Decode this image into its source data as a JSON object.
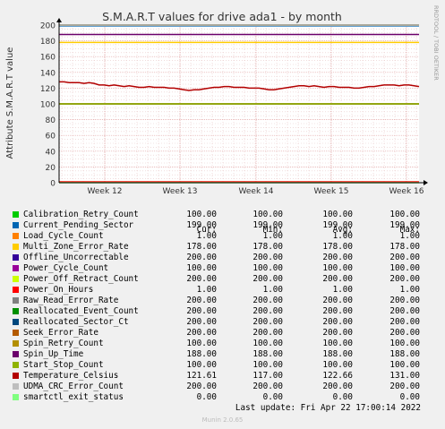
{
  "chart_data": {
    "type": "line",
    "title": "S.M.A.R.T values for drive ada1 - by month",
    "ylabel": "Attribute S.M.A.R.T value",
    "side_label": "RRDTOOL / TOBI OETIKER",
    "ylim": [
      0,
      200
    ],
    "yticks": [
      0,
      20,
      40,
      60,
      80,
      100,
      120,
      140,
      160,
      180,
      200
    ],
    "xticks": [
      "Week 12",
      "Week 13",
      "Week 14",
      "Week 15",
      "Week 16"
    ],
    "grid": true,
    "flat_series": [
      {
        "name": "Calibration_Retry_Count",
        "value": 100,
        "color": "#00cc00"
      },
      {
        "name": "Current_Pending_Sector",
        "value": 199,
        "color": "#0066b3"
      },
      {
        "name": "Load_Cycle_Count",
        "value": 1,
        "color": "#ff8000"
      },
      {
        "name": "Multi_Zone_Error_Rate",
        "value": 178,
        "color": "#ffcc00"
      },
      {
        "name": "Offline_Uncorrectable",
        "value": 200,
        "color": "#330099"
      },
      {
        "name": "Power_Cycle_Count",
        "value": 100,
        "color": "#990099"
      },
      {
        "name": "Power_Off_Retract_Count",
        "value": 200,
        "color": "#ccff00"
      },
      {
        "name": "Power_On_Hours",
        "value": 1,
        "color": "#ff0000"
      },
      {
        "name": "Raw_Read_Error_Rate",
        "value": 200,
        "color": "#808080"
      },
      {
        "name": "Reallocated_Event_Count",
        "value": 200,
        "color": "#008f00"
      },
      {
        "name": "Reallocated_Sector_Ct",
        "value": 200,
        "color": "#00487d"
      },
      {
        "name": "Seek_Error_Rate",
        "value": 200,
        "color": "#b35a00"
      },
      {
        "name": "Spin_Retry_Count",
        "value": 100,
        "color": "#b38f00"
      },
      {
        "name": "Spin_Up_Time",
        "value": 188,
        "color": "#6b006b"
      },
      {
        "name": "Start_Stop_Count",
        "value": 100,
        "color": "#8fb300"
      },
      {
        "name": "UDMA_CRC_Error_Count",
        "value": 200,
        "color": "#bebebe"
      },
      {
        "name": "smartctl_exit_status",
        "value": 0,
        "color": "#80ff80"
      }
    ],
    "temperature_series": {
      "name": "Temperature_Celsius",
      "color": "#b30000",
      "values": [
        128,
        128,
        127,
        127,
        127,
        126,
        127,
        126,
        124,
        124,
        123,
        124,
        123,
        122,
        123,
        122,
        121,
        121,
        122,
        121,
        121,
        121,
        120,
        120,
        119,
        118,
        117,
        118,
        118,
        119,
        120,
        121,
        121,
        122,
        122,
        121,
        121,
        121,
        120,
        120,
        120,
        119,
        118,
        118,
        119,
        120,
        121,
        122,
        123,
        123,
        122,
        123,
        122,
        121,
        122,
        122,
        121,
        121,
        121,
        120,
        120,
        121,
        122,
        122,
        123,
        124,
        124,
        124,
        123,
        124,
        124,
        123,
        122
      ]
    }
  },
  "legend": {
    "headers": {
      "cur": "Cur:",
      "min": "Min:",
      "avg": "Avg:",
      "max": "Max:"
    },
    "rows": [
      {
        "name": "Calibration_Retry_Count",
        "color": "#00cc00",
        "cur": "100.00",
        "min": "100.00",
        "avg": "100.00",
        "max": "100.00"
      },
      {
        "name": "Current_Pending_Sector",
        "color": "#0066b3",
        "cur": "199.00",
        "min": "199.00",
        "avg": "199.00",
        "max": "199.00"
      },
      {
        "name": "Load_Cycle_Count",
        "color": "#ff8000",
        "cur": "1.00",
        "min": "1.00",
        "avg": "1.00",
        "max": "1.00"
      },
      {
        "name": "Multi_Zone_Error_Rate",
        "color": "#ffcc00",
        "cur": "178.00",
        "min": "178.00",
        "avg": "178.00",
        "max": "178.00"
      },
      {
        "name": "Offline_Uncorrectable",
        "color": "#330099",
        "cur": "200.00",
        "min": "200.00",
        "avg": "200.00",
        "max": "200.00"
      },
      {
        "name": "Power_Cycle_Count",
        "color": "#990099",
        "cur": "100.00",
        "min": "100.00",
        "avg": "100.00",
        "max": "100.00"
      },
      {
        "name": "Power_Off_Retract_Count",
        "color": "#ccff00",
        "cur": "200.00",
        "min": "200.00",
        "avg": "200.00",
        "max": "200.00"
      },
      {
        "name": "Power_On_Hours",
        "color": "#ff0000",
        "cur": "1.00",
        "min": "1.00",
        "avg": "1.00",
        "max": "1.00"
      },
      {
        "name": "Raw_Read_Error_Rate",
        "color": "#808080",
        "cur": "200.00",
        "min": "200.00",
        "avg": "200.00",
        "max": "200.00"
      },
      {
        "name": "Reallocated_Event_Count",
        "color": "#008f00",
        "cur": "200.00",
        "min": "200.00",
        "avg": "200.00",
        "max": "200.00"
      },
      {
        "name": "Reallocated_Sector_Ct",
        "color": "#00487d",
        "cur": "200.00",
        "min": "200.00",
        "avg": "200.00",
        "max": "200.00"
      },
      {
        "name": "Seek_Error_Rate",
        "color": "#b35a00",
        "cur": "200.00",
        "min": "200.00",
        "avg": "200.00",
        "max": "200.00"
      },
      {
        "name": "Spin_Retry_Count",
        "color": "#b38f00",
        "cur": "100.00",
        "min": "100.00",
        "avg": "100.00",
        "max": "100.00"
      },
      {
        "name": "Spin_Up_Time",
        "color": "#6b006b",
        "cur": "188.00",
        "min": "188.00",
        "avg": "188.00",
        "max": "188.00"
      },
      {
        "name": "Start_Stop_Count",
        "color": "#8fb300",
        "cur": "100.00",
        "min": "100.00",
        "avg": "100.00",
        "max": "100.00"
      },
      {
        "name": "Temperature_Celsius",
        "color": "#b30000",
        "cur": "121.61",
        "min": "117.00",
        "avg": "122.66",
        "max": "131.00"
      },
      {
        "name": "UDMA_CRC_Error_Count",
        "color": "#bebebe",
        "cur": "200.00",
        "min": "200.00",
        "avg": "200.00",
        "max": "200.00"
      },
      {
        "name": "smartctl_exit_status",
        "color": "#80ff80",
        "cur": "0.00",
        "min": "0.00",
        "avg": "0.00",
        "max": "0.00"
      }
    ]
  },
  "footer": {
    "last_update": "Last update: Fri Apr 22 17:00:14 2022",
    "version": "Munin 2.0.65"
  }
}
